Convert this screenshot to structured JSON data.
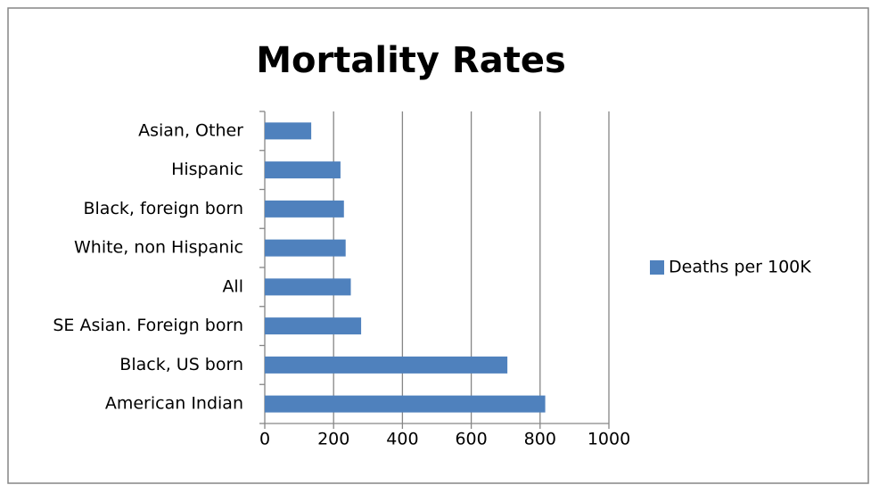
{
  "chart_data": {
    "type": "hbar",
    "title": "Mortality Rates",
    "categories": [
      "Asian, Other",
      "Hispanic",
      "Black, foreign born",
      "White, non Hispanic",
      "All",
      "SE Asian. Foreign born",
      "Black, US born",
      "American Indian"
    ],
    "series": [
      {
        "name": "Deaths per 100K",
        "color": "#4f81bd",
        "values": [
          135,
          220,
          230,
          235,
          250,
          280,
          705,
          815
        ]
      }
    ],
    "xlim": [
      0,
      1000
    ],
    "xticks": [
      0,
      200,
      400,
      600,
      800,
      1000
    ],
    "grid": true,
    "legend": "right"
  }
}
